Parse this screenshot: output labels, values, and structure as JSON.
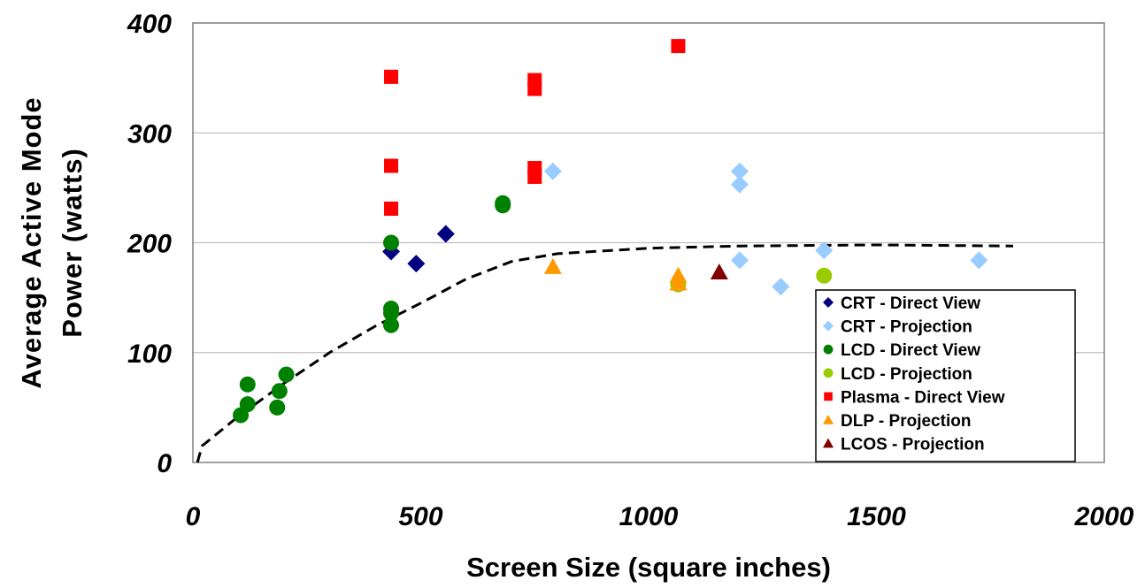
{
  "chart_data": {
    "type": "scatter",
    "title": "",
    "xlabel": "Screen Size (square inches)",
    "ylabel_lines": [
      "Average Active Mode",
      "Power (watts)"
    ],
    "xlim": [
      0,
      2000
    ],
    "ylim": [
      0,
      400
    ],
    "x_ticks": [
      "0",
      "500",
      "1000",
      "1500",
      "2000"
    ],
    "y_ticks": [
      "0",
      "100",
      "200",
      "300",
      "400"
    ],
    "x_tick_values": [
      0,
      500,
      1000,
      1500,
      2000
    ],
    "y_tick_values": [
      0,
      100,
      200,
      300,
      400
    ],
    "grid": "horizontal",
    "legend_position": "bottom-right",
    "series": [
      {
        "name": "CRT - Direct View",
        "marker": "diamond",
        "color": "#000080",
        "points": [
          [
            435,
            192
          ],
          [
            490,
            181
          ],
          [
            555,
            208
          ]
        ]
      },
      {
        "name": "CRT - Projection",
        "marker": "diamond",
        "color": "#99ccff",
        "points": [
          [
            790,
            265
          ],
          [
            1200,
            265
          ],
          [
            1200,
            253
          ],
          [
            1200,
            184
          ],
          [
            1290,
            160
          ],
          [
            1385,
            193
          ],
          [
            1725,
            184
          ]
        ]
      },
      {
        "name": "LCD - Direct View",
        "marker": "circle",
        "color": "#008000",
        "points": [
          [
            105,
            43
          ],
          [
            120,
            53
          ],
          [
            120,
            71
          ],
          [
            185,
            50
          ],
          [
            190,
            65
          ],
          [
            205,
            80
          ],
          [
            435,
            200
          ],
          [
            435,
            140
          ],
          [
            435,
            136
          ],
          [
            435,
            125
          ],
          [
            680,
            236
          ],
          [
            680,
            234
          ]
        ]
      },
      {
        "name": "LCD - Projection",
        "marker": "circle",
        "color": "#99cc00",
        "points": [
          [
            1065,
            162
          ],
          [
            1385,
            170
          ]
        ]
      },
      {
        "name": "Plasma - Direct View",
        "marker": "square",
        "color": "#ff0000",
        "points": [
          [
            435,
            351
          ],
          [
            435,
            270
          ],
          [
            435,
            231
          ],
          [
            750,
            348
          ],
          [
            750,
            340
          ],
          [
            750,
            268
          ],
          [
            750,
            260
          ],
          [
            1065,
            379
          ]
        ]
      },
      {
        "name": "DLP - Projection",
        "marker": "triangle",
        "color": "#ff9900",
        "points": [
          [
            790,
            178
          ],
          [
            1065,
            170
          ],
          [
            1065,
            163
          ]
        ]
      },
      {
        "name": "LCOS - Projection",
        "marker": "triangle",
        "color": "#800000",
        "points": [
          [
            1155,
            173
          ]
        ]
      }
    ],
    "trendline": {
      "style": "dashed",
      "color": "#000000",
      "points": [
        [
          10,
          0
        ],
        [
          20,
          15
        ],
        [
          100,
          42
        ],
        [
          200,
          72
        ],
        [
          300,
          100
        ],
        [
          400,
          124
        ],
        [
          500,
          145
        ],
        [
          600,
          167
        ],
        [
          700,
          183
        ],
        [
          800,
          190
        ],
        [
          1000,
          195
        ],
        [
          1200,
          197
        ],
        [
          1500,
          198
        ],
        [
          1800,
          197
        ]
      ]
    }
  }
}
